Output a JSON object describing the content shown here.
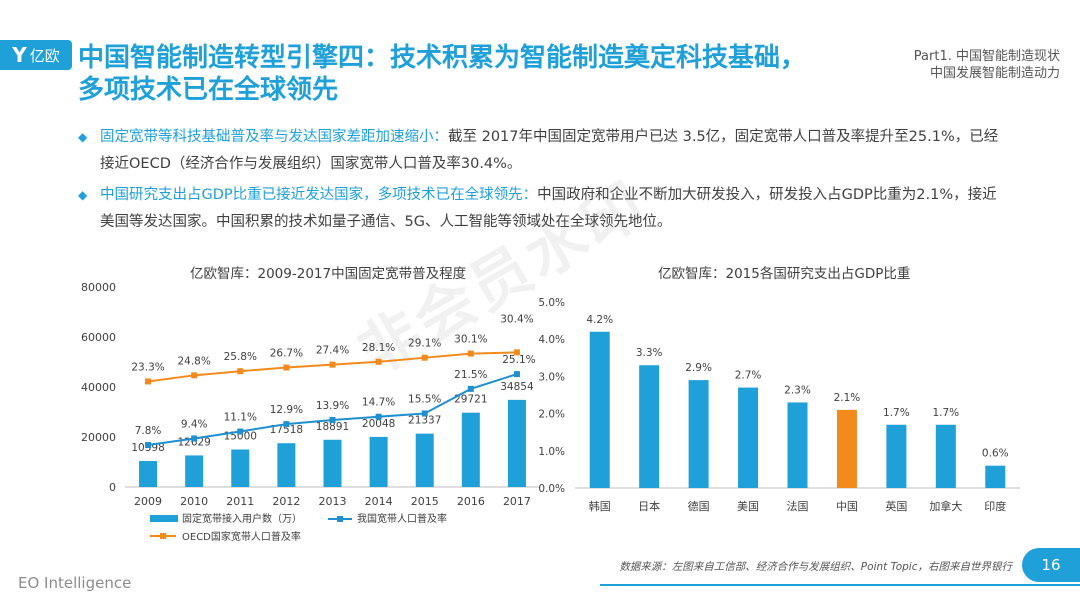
{
  "brand": {
    "logo_mark": "Y",
    "logo_text": "亿欧",
    "footer": "EO Intelligence"
  },
  "title": "中国智能制造转型引擎四：技术积累为智能制造奠定科技基础，多项技术已在全球领先",
  "part": {
    "line1": "Part1. 中国智能制造现状",
    "line2": "中国发展智能制造动力"
  },
  "bullets": [
    {
      "highlight": "固定宽带等科技基础普及率与发达国家差距加速缩小：",
      "text": "截至 2017年中国固定宽带用户已达 3.5亿，固定宽带人口普及率提升至25.1%，已经接近OECD（经济合作与发展组织）国家宽带人口普及率30.4%。"
    },
    {
      "highlight": "中国研究支出占GDP比重已接近发达国家，多项技术已在全球领先：",
      "text": "中国政府和企业不断加大研发投入，研发投入占GDP比重为2.1%，接近美国等发达国家。中国积累的技术如量子通信、5G、人工智能等领域处在全球领先地位。"
    }
  ],
  "chart_data": [
    {
      "type": "bar",
      "title": "亿欧智库：2009-2017中国固定宽带普及程度",
      "categories": [
        "2009",
        "2010",
        "2011",
        "2012",
        "2013",
        "2014",
        "2015",
        "2016",
        "2017"
      ],
      "ylim": [
        0,
        80000
      ],
      "yticks": [
        0,
        20000,
        40000,
        60000,
        80000
      ],
      "series": [
        {
          "name": "固定宽带接入用户数（万）",
          "kind": "bar",
          "color": "#1fa0d9",
          "values": [
            10398,
            12629,
            15000,
            17518,
            18891,
            20048,
            21337,
            29721,
            34854
          ]
        },
        {
          "name": "我国宽带人口普及率",
          "kind": "line",
          "color": "#1f8fd0",
          "values": [
            7.8,
            9.4,
            11.1,
            12.9,
            13.9,
            14.7,
            15.5,
            21.5,
            25.1
          ],
          "labels": [
            "7.8%",
            "9.4%",
            "11.1%",
            "12.9%",
            "13.9%",
            "14.7%",
            "15.5%",
            "21.5%",
            "25.1%"
          ]
        },
        {
          "name": "OECD国家宽带人口普及率",
          "kind": "line",
          "color": "#f28a1c",
          "values": [
            23.3,
            24.8,
            25.8,
            26.7,
            27.4,
            28.1,
            29.1,
            30.1,
            30.4
          ],
          "labels": [
            "23.3%",
            "24.8%",
            "25.8%",
            "26.7%",
            "27.4%",
            "28.1%",
            "29.1%",
            "30.1%",
            "30.4%"
          ]
        }
      ],
      "legend": "bottom"
    },
    {
      "type": "bar",
      "title": "亿欧智库：2015各国研究支出占GDP比重",
      "categories": [
        "韩国",
        "日本",
        "德国",
        "美国",
        "法国",
        "中国",
        "英国",
        "加拿大",
        "印度"
      ],
      "values": [
        4.2,
        3.3,
        2.9,
        2.7,
        2.3,
        2.1,
        1.7,
        1.7,
        0.6
      ],
      "labels": [
        "4.2%",
        "3.3%",
        "2.9%",
        "2.7%",
        "2.3%",
        "2.1%",
        "1.7%",
        "1.7%",
        "0.6%"
      ],
      "ylim": [
        0,
        5
      ],
      "yticks": [
        "0.0%",
        "1.0%",
        "2.0%",
        "3.0%",
        "4.0%",
        "5.0%"
      ],
      "bar_color": "#1fa0d9",
      "highlight_category": "中国",
      "highlight_color": "#f28a1c"
    }
  ],
  "source": "数据来源：左图来自工信部、经济合作与发展组织、Point Topic，右图来自世界银行",
  "page_number": "16",
  "watermark": "非会员水印"
}
